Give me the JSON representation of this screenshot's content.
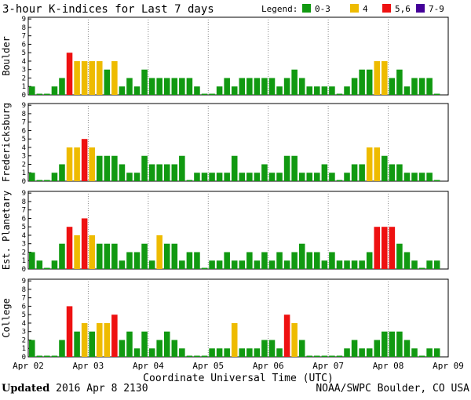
{
  "title": "3-hour K-indices for Last 7 days",
  "legend": {
    "label": "Legend:",
    "items": [
      {
        "label": "0-3",
        "color": "#119911"
      },
      {
        "label": "4",
        "color": "#eebb00"
      },
      {
        "label": "5,6",
        "color": "#ee1111"
      },
      {
        "label": "7-9",
        "color": "#440099"
      }
    ]
  },
  "chart_data": {
    "type": "bar",
    "title": "3-hour K-indices for Last 7 days",
    "xlabel": "Coordinate Universal Time (UTC)",
    "ylim": [
      0,
      9
    ],
    "yticks": [
      "0",
      "1",
      "2",
      "3",
      "4",
      "5",
      "6",
      "7",
      "8",
      "9"
    ],
    "x_ticks": [
      "Apr 02",
      "Apr 03",
      "Apr 04",
      "Apr 05",
      "Apr 06",
      "Apr 07",
      "Apr 08",
      "Apr 09"
    ],
    "bars_per_day": 8,
    "color_rule": {
      "0-3": "#119911",
      "4": "#eebb00",
      "5-6": "#ee1111",
      "7-9": "#440099"
    },
    "series": [
      {
        "name": "Boulder",
        "values": [
          1,
          0,
          0,
          1,
          2,
          5,
          4,
          4,
          4,
          4,
          3,
          4,
          1,
          2,
          1,
          3,
          2,
          2,
          2,
          2,
          2,
          2,
          1,
          0,
          0,
          1,
          2,
          1,
          2,
          2,
          2,
          2,
          2,
          1,
          2,
          3,
          2,
          1,
          1,
          1,
          1,
          0,
          1,
          2,
          3,
          3,
          4,
          4,
          2,
          3,
          1,
          2,
          2,
          2,
          0
        ]
      },
      {
        "name": "Fredericksburg",
        "values": [
          1,
          0,
          0,
          1,
          2,
          4,
          4,
          5,
          4,
          3,
          3,
          3,
          2,
          1,
          1,
          3,
          2,
          2,
          2,
          2,
          3,
          0,
          1,
          1,
          1,
          1,
          1,
          3,
          1,
          1,
          1,
          2,
          1,
          1,
          3,
          3,
          1,
          1,
          1,
          2,
          1,
          0,
          1,
          2,
          2,
          4,
          4,
          3,
          2,
          2,
          1,
          1,
          1,
          1,
          0
        ]
      },
      {
        "name": "Est. Planetary",
        "values": [
          2,
          1,
          0,
          1,
          3,
          5,
          4,
          6,
          4,
          3,
          3,
          3,
          1,
          2,
          2,
          3,
          1,
          4,
          3,
          3,
          1,
          2,
          2,
          0,
          1,
          1,
          2,
          1,
          1,
          2,
          1,
          2,
          1,
          2,
          1,
          2,
          3,
          2,
          2,
          1,
          2,
          1,
          1,
          1,
          1,
          2,
          5,
          5,
          5,
          3,
          2,
          1,
          0,
          1,
          1
        ]
      },
      {
        "name": "College",
        "values": [
          2,
          0,
          0,
          0,
          2,
          6,
          3,
          4,
          3,
          4,
          4,
          5,
          2,
          3,
          1,
          3,
          1,
          2,
          3,
          2,
          1,
          0,
          0,
          0,
          1,
          1,
          1,
          4,
          1,
          1,
          1,
          2,
          2,
          1,
          5,
          4,
          2,
          0,
          0,
          0,
          0,
          0,
          1,
          2,
          1,
          1,
          2,
          3,
          3,
          3,
          2,
          1,
          0,
          1,
          1
        ]
      }
    ]
  },
  "footer": {
    "updated_label": "Updated",
    "updated_value": "2016 Apr  8 2130",
    "source": "NOAA/SWPC Boulder, CO USA"
  }
}
